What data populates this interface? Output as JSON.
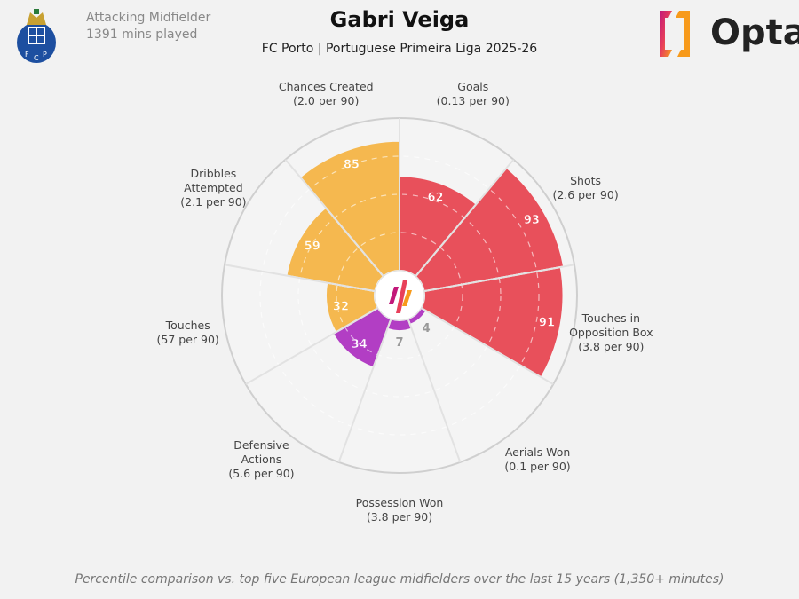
{
  "header": {
    "title": "Gabri Veiga",
    "subtitle": "FC Porto | Portuguese Primeira Liga 2025-26",
    "position": "Attacking Midfielder",
    "minutes": "1391 mins played",
    "logo": "Opta",
    "crest": "FC Porto crest"
  },
  "footer": "Percentile comparison vs. top five European league midfielders over the last 15 years (1,350+ minutes)",
  "colors": {
    "attacking": "#e8505b",
    "possession": "#f5b84f",
    "defending": "#b23ec4",
    "background": "#f2f2f2"
  },
  "chart_data": {
    "type": "pizza",
    "rlim": [
      0,
      100
    ],
    "grid": "dashed rings",
    "categories": [
      {
        "name": "Goals",
        "per90": "(0.13 per 90)",
        "value": 62,
        "group": "attacking"
      },
      {
        "name": "Shots",
        "per90": "(2.6 per 90)",
        "value": 93,
        "group": "attacking"
      },
      {
        "name": "Touches in\nOpposition Box",
        "per90": "(3.8 per 90)",
        "value": 91,
        "group": "attacking"
      },
      {
        "name": "Aerials Won",
        "per90": "(0.1 per 90)",
        "value": 4,
        "group": "defending"
      },
      {
        "name": "Possession Won",
        "per90": "(3.8 per 90)",
        "value": 7,
        "group": "defending"
      },
      {
        "name": "Defensive\nActions",
        "per90": "(5.6 per 90)",
        "value": 34,
        "group": "defending"
      },
      {
        "name": "Touches",
        "per90": "(57 per 90)",
        "value": 32,
        "group": "possession"
      },
      {
        "name": "Dribbles\nAttempted",
        "per90": "(2.1 per 90)",
        "value": 59,
        "group": "possession"
      },
      {
        "name": "Chances Created",
        "per90": "(2.0 per 90)",
        "value": 85,
        "group": "possession"
      }
    ]
  }
}
